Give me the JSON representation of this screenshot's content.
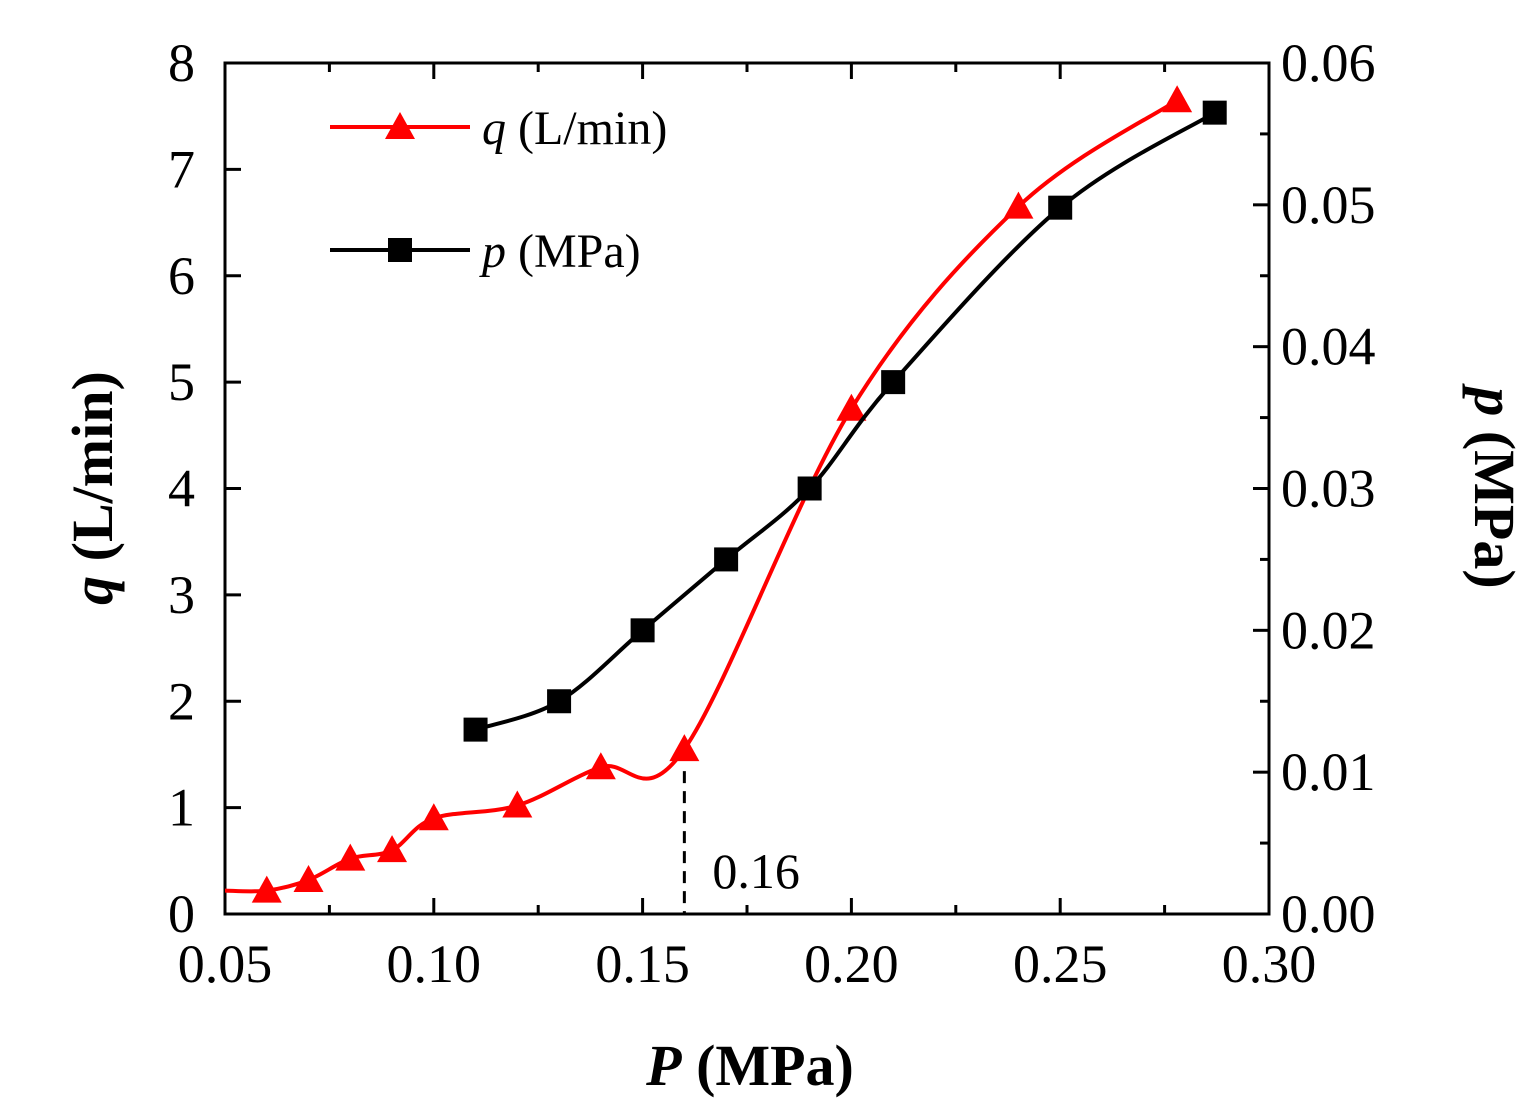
{
  "chart_data": {
    "type": "line",
    "title": "",
    "xlabel": {
      "symbol": "P",
      "unit": " (MPa)"
    },
    "ylabel_left": {
      "symbol": "q",
      "unit": " (L/min)"
    },
    "ylabel_right": {
      "symbol": "p",
      "unit": " (MPa)"
    },
    "xlim": [
      0.05,
      0.3
    ],
    "ylim_left": [
      0,
      8
    ],
    "ylim_right": [
      0.0,
      0.06
    ],
    "x_ticks": [
      "0.05",
      "0.10",
      "0.15",
      "0.20",
      "0.25",
      "0.30"
    ],
    "y_left_ticks": [
      "0",
      "1",
      "2",
      "3",
      "4",
      "5",
      "6",
      "7",
      "8"
    ],
    "y_right_ticks": [
      "0.00",
      "0.01",
      "0.02",
      "0.03",
      "0.04",
      "0.05",
      "0.06"
    ],
    "legend_position": "top-left",
    "series": [
      {
        "name": "q",
        "label_symbol": "q",
        "label_unit": " (L/min)",
        "axis": "left",
        "marker": "triangle",
        "color": "#ff0000",
        "x": [
          0.06,
          0.07,
          0.08,
          0.09,
          0.1,
          0.12,
          0.14,
          0.16,
          0.2,
          0.24,
          0.278
        ],
        "y": [
          0.22,
          0.32,
          0.52,
          0.6,
          0.9,
          1.02,
          1.38,
          1.55,
          4.75,
          6.65,
          7.65
        ]
      },
      {
        "name": "p",
        "label_symbol": "p",
        "label_unit": " (MPa)",
        "axis": "right",
        "marker": "square",
        "color": "#000000",
        "x": [
          0.11,
          0.13,
          0.15,
          0.17,
          0.19,
          0.21,
          0.25,
          0.287
        ],
        "y": [
          0.013,
          0.015,
          0.02,
          0.025,
          0.03,
          0.0375,
          0.0498,
          0.0565
        ]
      }
    ],
    "annotations": [
      {
        "text": "0.16",
        "x": 0.16,
        "y": 0
      }
    ]
  }
}
